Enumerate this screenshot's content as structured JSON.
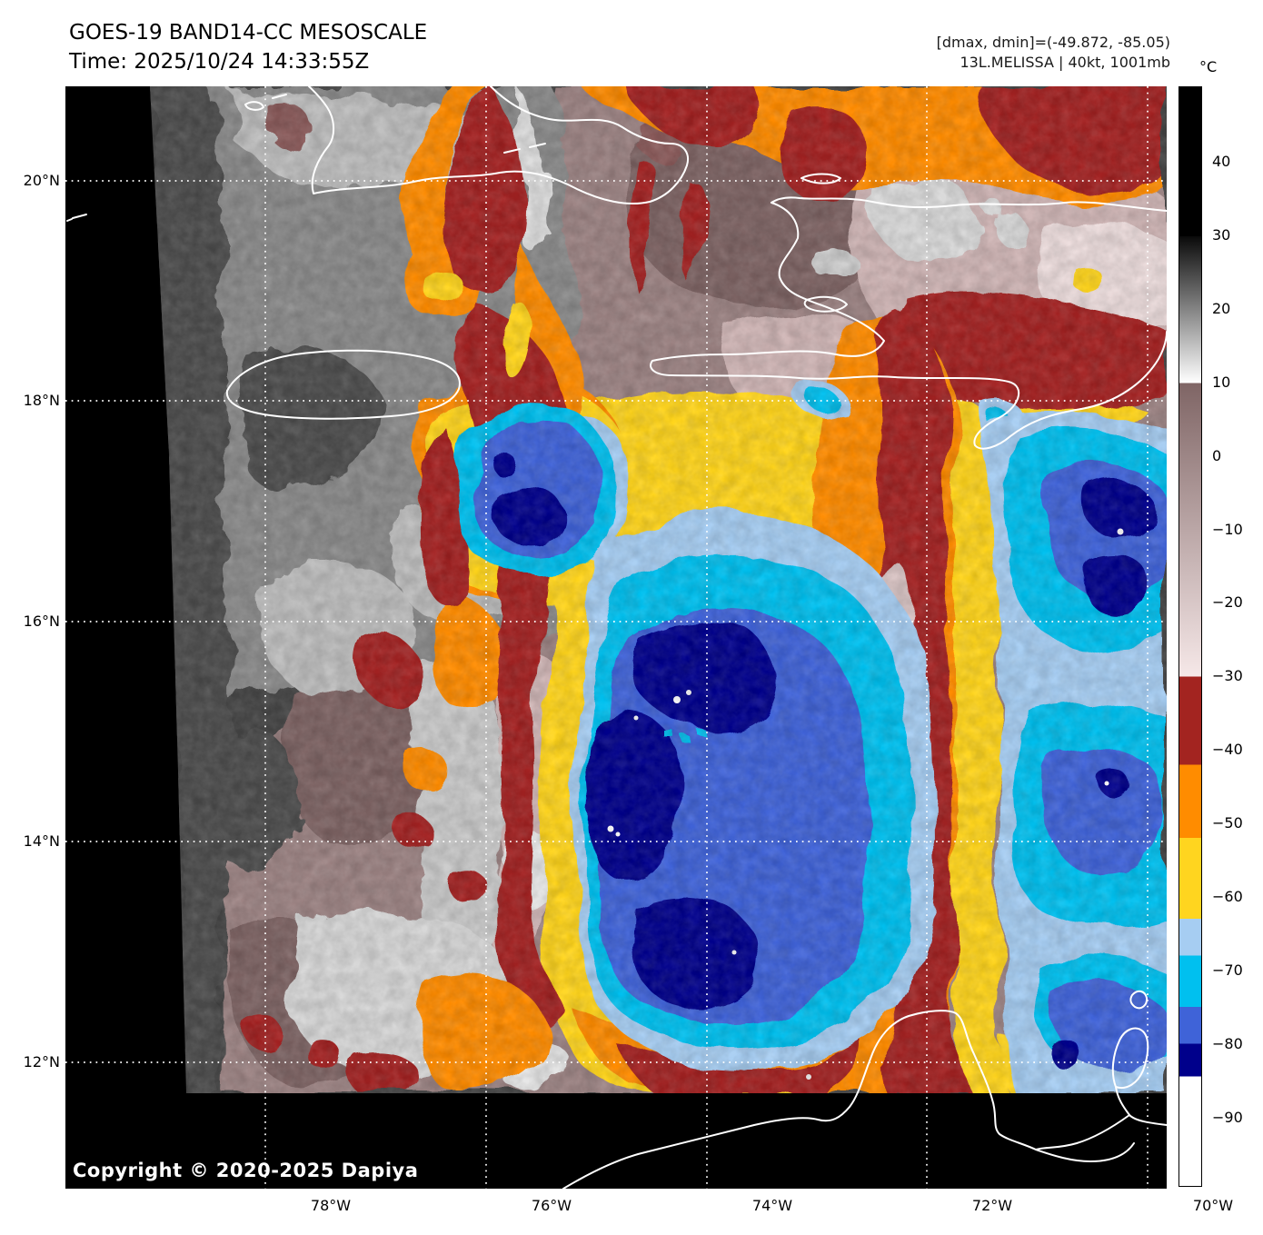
{
  "header": {
    "title_line1": "GOES-19 BAND14-CC MESOSCALE",
    "title_line2": "Time: 2025/10/24 14:33:55Z",
    "annotation_line1": "[dmax, dmin]=(-49.872, -85.05)",
    "annotation_line2": "13L.MELISSA | 40kt, 1001mb"
  },
  "map": {
    "copyright": "Copyright © 2020-2025 Dapiya",
    "lat_labels": [
      "20°N",
      "18°N",
      "16°N",
      "14°N",
      "12°N"
    ],
    "lon_labels": [
      "78°W",
      "76°W",
      "74°W",
      "72°W",
      "70°W"
    ]
  },
  "colorbar": {
    "unit_label": "°C",
    "range_c": [
      50.3,
      -99.4
    ],
    "ticks": [
      {
        "label": "40",
        "value": 40
      },
      {
        "label": "30",
        "value": 30
      },
      {
        "label": "20",
        "value": 20
      },
      {
        "label": "10",
        "value": 10
      },
      {
        "label": "0",
        "value": 0
      },
      {
        "label": "−10",
        "value": -10
      },
      {
        "label": "−20",
        "value": -20
      },
      {
        "label": "−30",
        "value": -30
      },
      {
        "label": "−40",
        "value": -40
      },
      {
        "label": "−50",
        "value": -50
      },
      {
        "label": "−60",
        "value": -60
      },
      {
        "label": "−70",
        "value": -70
      },
      {
        "label": "−80",
        "value": -80
      },
      {
        "label": "−90",
        "value": -90
      }
    ],
    "segments": [
      {
        "from_c": 50.3,
        "to_c": 30,
        "type": "solid",
        "color": "#000000"
      },
      {
        "from_c": 30,
        "to_c": 10,
        "type": "gradient",
        "color_top": "#0a0a0a",
        "color_bottom": "#ffffff"
      },
      {
        "from_c": 10,
        "to_c": -30,
        "type": "gradient",
        "color_top": "#7f6565",
        "color_bottom": "#f6e8e8"
      },
      {
        "from_c": -30,
        "to_c": -42,
        "type": "solid",
        "color": "#a32420"
      },
      {
        "from_c": -42,
        "to_c": -52,
        "type": "solid",
        "color": "#ff8c00"
      },
      {
        "from_c": -52,
        "to_c": -63,
        "type": "solid",
        "color": "#ffd51f"
      },
      {
        "from_c": -63,
        "to_c": -68,
        "type": "solid",
        "color": "#a6cdf2"
      },
      {
        "from_c": -68,
        "to_c": -75,
        "type": "solid",
        "color": "#00c0ef"
      },
      {
        "from_c": -75,
        "to_c": -80,
        "type": "solid",
        "color": "#3f63d8"
      },
      {
        "from_c": -80,
        "to_c": -84.5,
        "type": "solid",
        "color": "#00008b"
      },
      {
        "from_c": -84.5,
        "to_c": -99.4,
        "type": "solid",
        "color": "#ffffff"
      }
    ]
  },
  "palette": {
    "background": "#ffffff",
    "space_fill": "#000000",
    "warm_ocean_gray": "#454545",
    "cloud_gray": "#8a8a8a",
    "cloud_bright": "#e6e6e6",
    "mauve_mid_cloud": "#9c8383",
    "deep_convection_red": "#a32420",
    "convection_orange": "#ff8c00",
    "convection_yellow": "#ffd51f",
    "cold_light_blue": "#a6cdf2",
    "cold_cyan": "#00c0ef",
    "cold_royal_blue": "#3f63d8",
    "cold_navy": "#00008b",
    "overshoot_white": "#ffffff",
    "coastline": "#ffffff",
    "gridline": "#ffffff"
  }
}
